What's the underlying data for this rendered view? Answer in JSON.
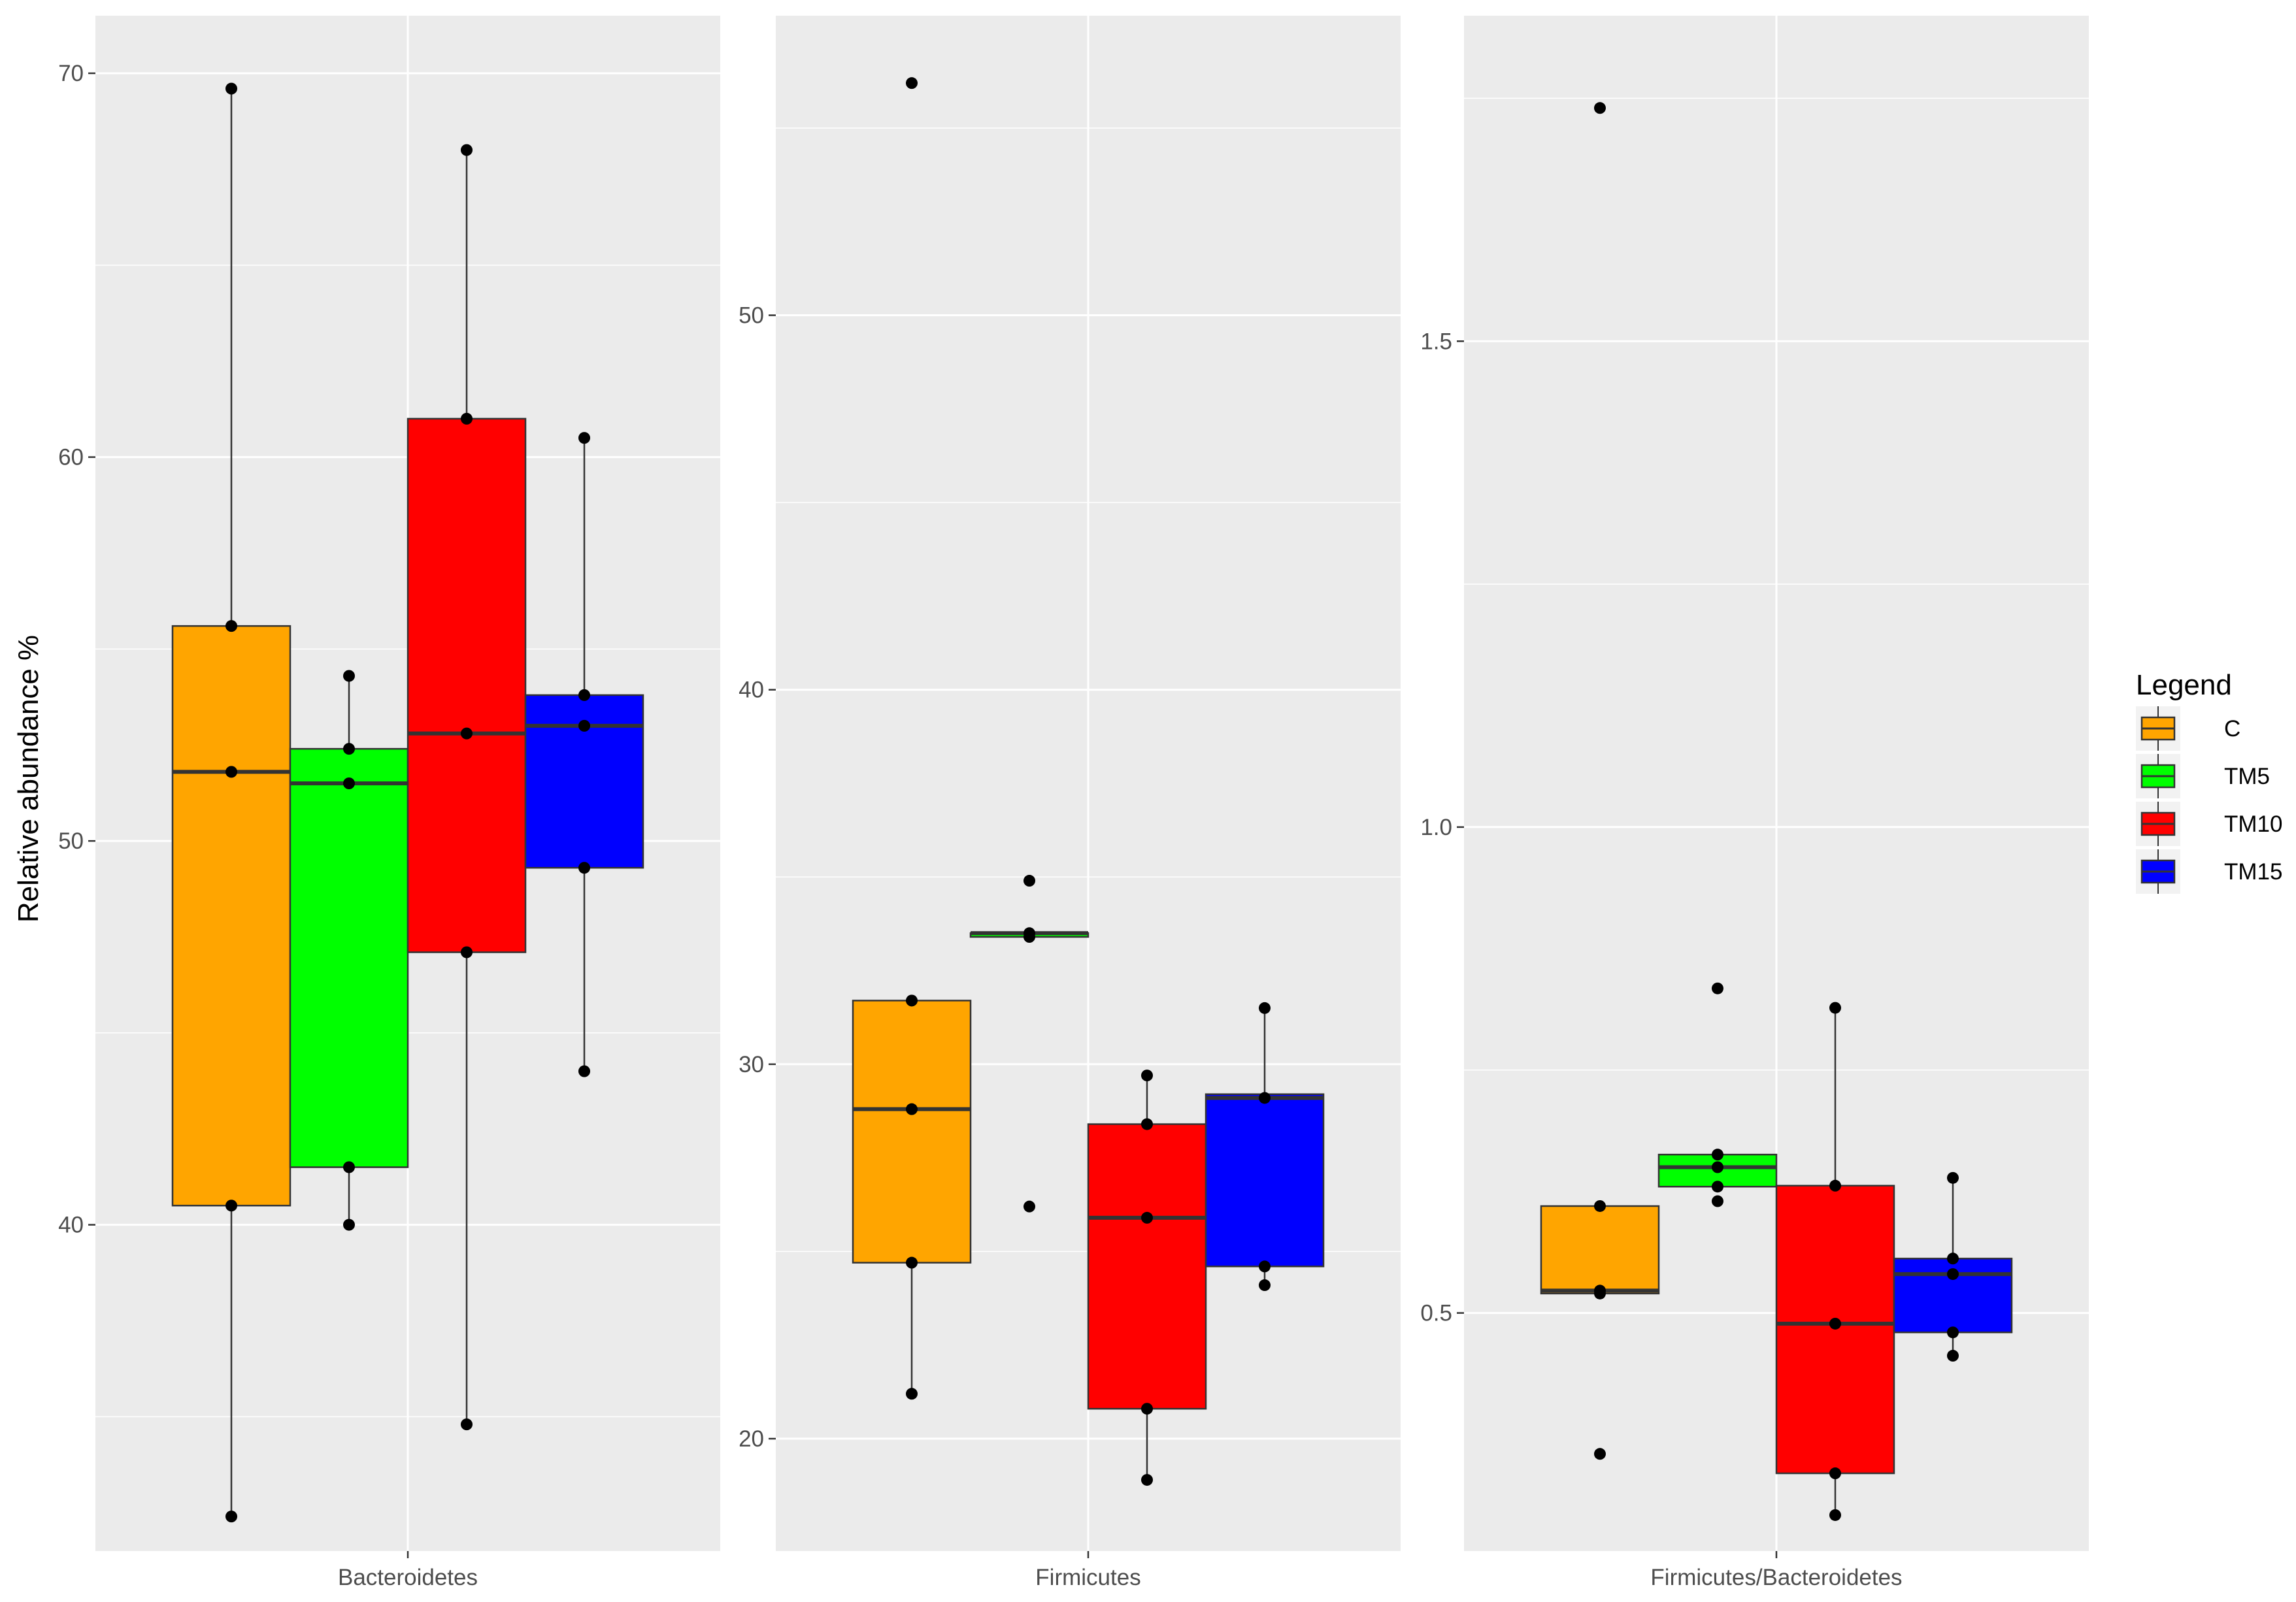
{
  "chart_data": {
    "type": "box",
    "ylabel": "Relative abundance %",
    "legend": {
      "title": "Legend",
      "position": "right",
      "items": [
        {
          "label": "C",
          "color": "#FFA500"
        },
        {
          "label": "TM5",
          "color": "#00FF00"
        },
        {
          "label": "TM10",
          "color": "#FF0000"
        },
        {
          "label": "TM15",
          "color": "#0000FF"
        }
      ]
    },
    "grid": true,
    "panels": [
      {
        "category": "Bacteroidetes",
        "ylim": [
          31.5,
          71.5
        ],
        "yticks": [
          40,
          50,
          60,
          70
        ],
        "yticklabels": [
          "40",
          "50",
          "60",
          "70"
        ],
        "boxes": [
          {
            "group": "C",
            "lower_whisker": 32.4,
            "q1": 40.5,
            "median": 51.8,
            "q3": 55.6,
            "upper_whisker": 69.6,
            "points": [
              69.6,
              55.6,
              51.8,
              40.5,
              32.4
            ],
            "outliers": []
          },
          {
            "group": "TM5",
            "lower_whisker": 40.0,
            "q1": 41.5,
            "median": 51.5,
            "q3": 52.4,
            "upper_whisker": 54.3,
            "points": [
              54.3,
              52.4,
              51.5,
              41.5,
              40.0
            ],
            "outliers": []
          },
          {
            "group": "TM10",
            "lower_whisker": 34.8,
            "q1": 47.1,
            "median": 52.8,
            "q3": 61.0,
            "upper_whisker": 68.0,
            "points": [
              68.0,
              61.0,
              52.8,
              47.1,
              34.8
            ],
            "outliers": []
          },
          {
            "group": "TM15",
            "lower_whisker": 44.0,
            "q1": 49.3,
            "median": 53.0,
            "q3": 53.8,
            "upper_whisker": 60.5,
            "points": [
              60.5,
              53.8,
              53.0,
              49.3,
              44.0
            ],
            "outliers": []
          }
        ]
      },
      {
        "category": "Firmicutes",
        "ylim": [
          17.0,
          58.0
        ],
        "yticks": [
          20,
          30,
          40,
          50
        ],
        "yticklabels": [
          "20",
          "30",
          "40",
          "50"
        ],
        "boxes": [
          {
            "group": "C",
            "lower_whisker": 21.2,
            "q1": 24.7,
            "median": 28.8,
            "q3": 31.7,
            "upper_whisker": 31.7,
            "points": [
              56.2,
              31.7,
              28.8,
              24.7,
              21.2
            ],
            "outliers": [
              56.2
            ]
          },
          {
            "group": "TM5",
            "lower_whisker": 33.4,
            "q1": 33.4,
            "median": 33.5,
            "q3": 33.5,
            "upper_whisker": 33.5,
            "points": [
              34.9,
              33.5,
              33.4,
              26.2
            ],
            "outliers": [
              34.9,
              26.2
            ]
          },
          {
            "group": "TM10",
            "lower_whisker": 18.9,
            "q1": 20.8,
            "median": 25.9,
            "q3": 28.4,
            "upper_whisker": 29.7,
            "points": [
              29.7,
              28.4,
              25.9,
              20.8,
              18.9
            ],
            "outliers": []
          },
          {
            "group": "TM15",
            "lower_whisker": 24.1,
            "q1": 24.6,
            "median": 29.1,
            "q3": 29.2,
            "upper_whisker": 31.5,
            "points": [
              31.5,
              29.1,
              24.6,
              24.1
            ],
            "outliers": []
          }
        ]
      },
      {
        "category": "Firmicutes/Bacteroidetes",
        "ylim": [
          0.255,
          1.835
        ],
        "yticks": [
          0.5,
          1.0,
          1.5
        ],
        "yticklabels": [
          "0.5",
          "1.0",
          "1.5"
        ],
        "boxes": [
          {
            "group": "C",
            "lower_whisker": 0.52,
            "q1": 0.52,
            "median": 0.523,
            "q3": 0.61,
            "upper_whisker": 0.61,
            "points": [
              1.74,
              0.61,
              0.523,
              0.52,
              0.355
            ],
            "outliers": [
              1.74,
              0.355
            ]
          },
          {
            "group": "TM5",
            "lower_whisker": 0.63,
            "q1": 0.63,
            "median": 0.65,
            "q3": 0.663,
            "upper_whisker": 0.663,
            "points": [
              0.834,
              0.663,
              0.65,
              0.63,
              0.615
            ],
            "outliers": [
              0.834,
              0.615
            ]
          },
          {
            "group": "TM10",
            "lower_whisker": 0.292,
            "q1": 0.335,
            "median": 0.489,
            "q3": 0.631,
            "upper_whisker": 0.814,
            "points": [
              0.814,
              0.631,
              0.489,
              0.335,
              0.292
            ],
            "outliers": []
          },
          {
            "group": "TM15",
            "lower_whisker": 0.456,
            "q1": 0.48,
            "median": 0.54,
            "q3": 0.556,
            "upper_whisker": 0.639,
            "points": [
              0.639,
              0.556,
              0.54,
              0.48,
              0.456
            ],
            "outliers": []
          }
        ]
      }
    ]
  }
}
